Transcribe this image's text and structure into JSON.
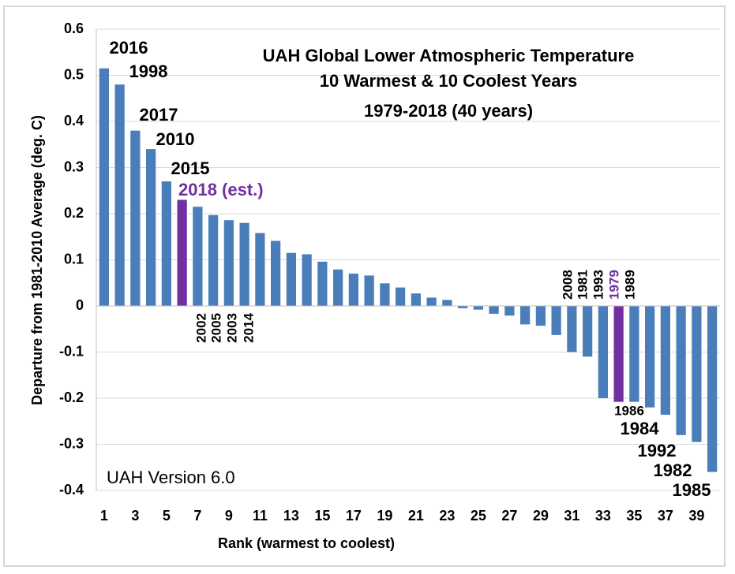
{
  "chart_data": {
    "type": "bar",
    "title": [
      "UAH Global Lower Atmospheric Temperature",
      "10 Warmest & 10 Coolest Years",
      "1979-2018 (40 years)"
    ],
    "x_label": "Rank (warmest to coolest)",
    "y_label": "Departure from 1981-2010 Average (deg. C)",
    "note": "UAH Version 6.0",
    "x": [
      1,
      2,
      3,
      4,
      5,
      6,
      7,
      8,
      9,
      10,
      11,
      12,
      13,
      14,
      15,
      16,
      17,
      18,
      19,
      20,
      21,
      22,
      23,
      24,
      25,
      26,
      27,
      28,
      29,
      30,
      31,
      32,
      33,
      34,
      35,
      36,
      37,
      38,
      39,
      40
    ],
    "values": [
      0.515,
      0.48,
      0.38,
      0.34,
      0.27,
      0.23,
      0.215,
      0.197,
      0.186,
      0.18,
      0.158,
      0.141,
      0.115,
      0.112,
      0.096,
      0.079,
      0.07,
      0.066,
      0.049,
      0.04,
      0.027,
      0.018,
      0.013,
      -0.005,
      -0.008,
      -0.017,
      -0.021,
      -0.04,
      -0.043,
      -0.063,
      -0.1,
      -0.11,
      -0.2,
      -0.208,
      -0.208,
      -0.22,
      -0.236,
      -0.28,
      -0.295,
      -0.36
    ],
    "colors": [
      "#4a7ebb",
      "#4a7ebb",
      "#4a7ebb",
      "#4a7ebb",
      "#4a7ebb",
      "#7030a0",
      "#4a7ebb",
      "#4a7ebb",
      "#4a7ebb",
      "#4a7ebb",
      "#4a7ebb",
      "#4a7ebb",
      "#4a7ebb",
      "#4a7ebb",
      "#4a7ebb",
      "#4a7ebb",
      "#4a7ebb",
      "#4a7ebb",
      "#4a7ebb",
      "#4a7ebb",
      "#4a7ebb",
      "#4a7ebb",
      "#4a7ebb",
      "#4a7ebb",
      "#4a7ebb",
      "#4a7ebb",
      "#4a7ebb",
      "#4a7ebb",
      "#4a7ebb",
      "#4a7ebb",
      "#4a7ebb",
      "#4a7ebb",
      "#4a7ebb",
      "#7030a0",
      "#4a7ebb",
      "#4a7ebb",
      "#4a7ebb",
      "#4a7ebb",
      "#4a7ebb",
      "#4a7ebb"
    ],
    "annotations": [
      "2016",
      "1998",
      "2017",
      "2010",
      "2015",
      "2018 (est.)",
      "2002",
      "2005",
      "2003",
      "2014",
      "2008",
      "1981",
      "1993",
      "1979",
      "1989",
      "1986",
      "1984",
      "1992",
      "1982",
      "1985"
    ],
    "xlim": [
      0.5,
      40.5
    ],
    "xticks": [
      1,
      3,
      5,
      7,
      9,
      11,
      13,
      15,
      17,
      19,
      21,
      23,
      25,
      27,
      29,
      31,
      33,
      35,
      37,
      39
    ],
    "ylim": [
      -0.4,
      0.6
    ],
    "yticks": [
      0.6,
      0.5,
      0.4,
      0.3,
      0.2,
      0.1,
      0,
      -0.1,
      -0.2,
      -0.3,
      -0.4
    ],
    "grid": true
  }
}
